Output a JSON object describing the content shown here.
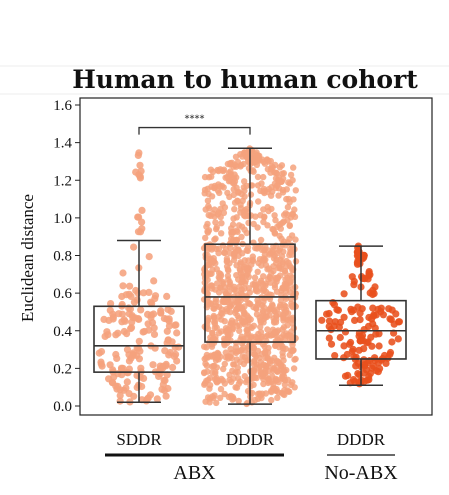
{
  "chart_data": {
    "type": "box",
    "title": "Human to human cohort",
    "ylabel": "Euclidean distance",
    "ylim": [
      0.0,
      1.6
    ],
    "yticks": [
      "0.0",
      "0.2",
      "0.4",
      "0.6",
      "0.8",
      "1.0",
      "1.2",
      "1.4",
      "1.6"
    ],
    "categories": [
      "SDDR",
      "DDDR",
      "DDDR"
    ],
    "groups": [
      {
        "label": "ABX",
        "members": [
          0,
          1
        ]
      },
      {
        "label": "No-ABX",
        "members": [
          2
        ]
      }
    ],
    "boxes": [
      {
        "category": "SDDR",
        "min": 0.02,
        "q1": 0.18,
        "median": 0.32,
        "q3": 0.53,
        "max": 0.88,
        "color": "#f5a27d",
        "points_range": [
          0.01,
          1.37
        ],
        "n_points": 190
      },
      {
        "category": "DDDR",
        "min": 0.01,
        "q1": 0.34,
        "median": 0.58,
        "q3": 0.86,
        "max": 1.37,
        "color": "#f5a27d",
        "points_range": [
          0.01,
          1.37
        ],
        "n_points": 1100
      },
      {
        "category": "DDDR",
        "min": 0.11,
        "q1": 0.25,
        "median": 0.4,
        "q3": 0.56,
        "max": 0.85,
        "color": "#e8501c",
        "points_range": [
          0.11,
          0.85
        ],
        "n_points": 160
      }
    ],
    "annotations": [
      {
        "text": "****",
        "between": [
          0,
          1
        ],
        "y": 1.48
      }
    ],
    "grid": false
  }
}
